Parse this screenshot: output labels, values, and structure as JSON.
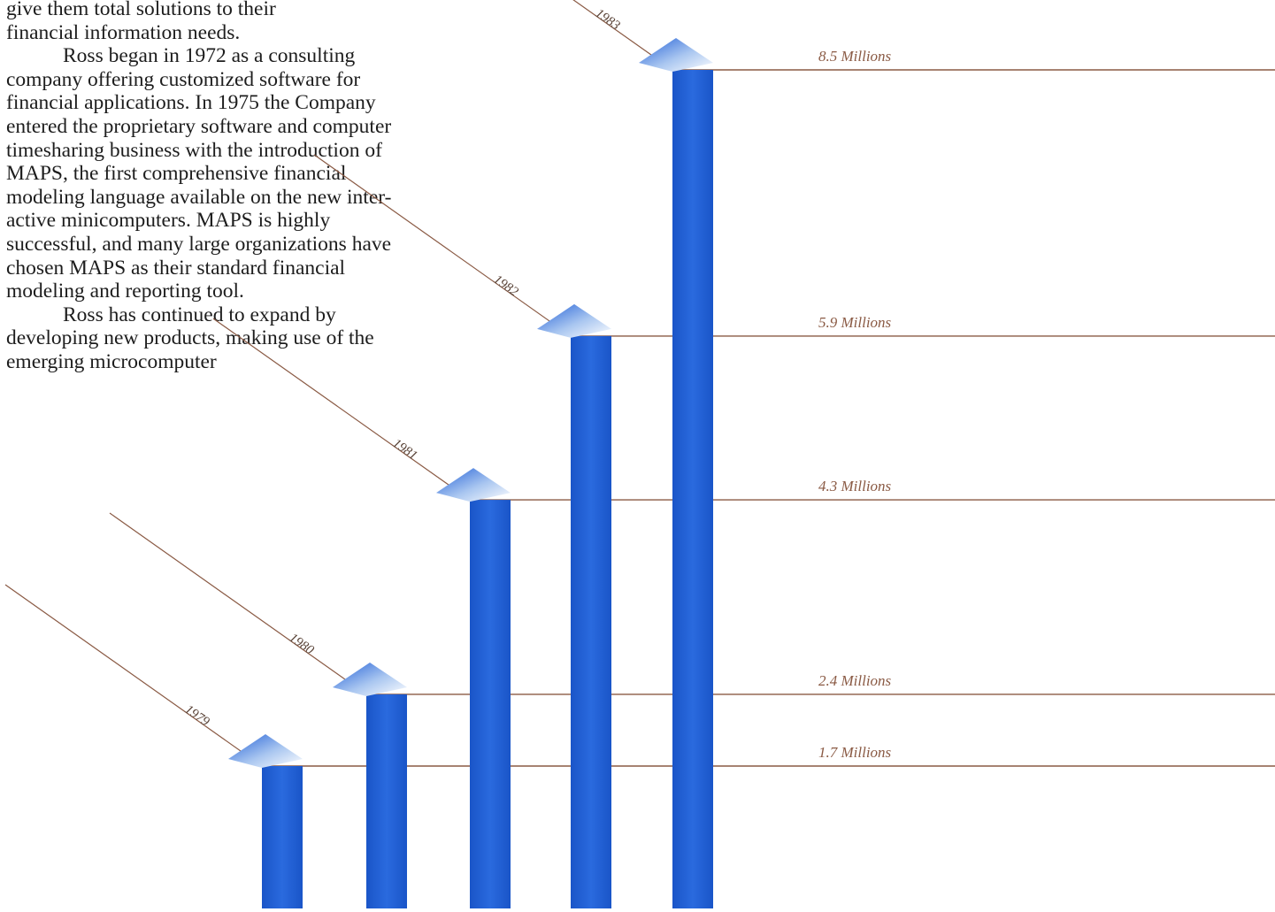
{
  "intro": {
    "line1": "give them total solutions to their",
    "line2": "financial information needs.",
    "para2": "Ross began in 1972 as a consulting company offering customized software for financial applications. In 1975 the Company entered the proprietary software and computer timesharing business with the introduction of MAPS, the first comprehensive financial modeling language available on the new inter-active minicomputers. MAPS is highly successful, and many large organizations have chosen MAPS as their standard financial modeling and reporting tool.",
    "para3": "Ross has continued to expand by developing new products, making use of the emerging microcomputer"
  },
  "chart_data": {
    "type": "bar",
    "categories": [
      "1979",
      "1980",
      "1981",
      "1982",
      "1983"
    ],
    "values": [
      1.7,
      2.4,
      4.3,
      5.9,
      8.5
    ],
    "value_labels": [
      "1.7 Millions",
      "2.4 Millions",
      "4.3 Millions",
      "5.9 Millions",
      "8.5 Millions"
    ],
    "title": "",
    "xlabel": "",
    "ylabel": "",
    "unit": "Millions",
    "grid": false,
    "bar_color": "#1a5bd1",
    "bar_color_light": "#4a86e0",
    "guide_line_color": "#8a5a44"
  }
}
